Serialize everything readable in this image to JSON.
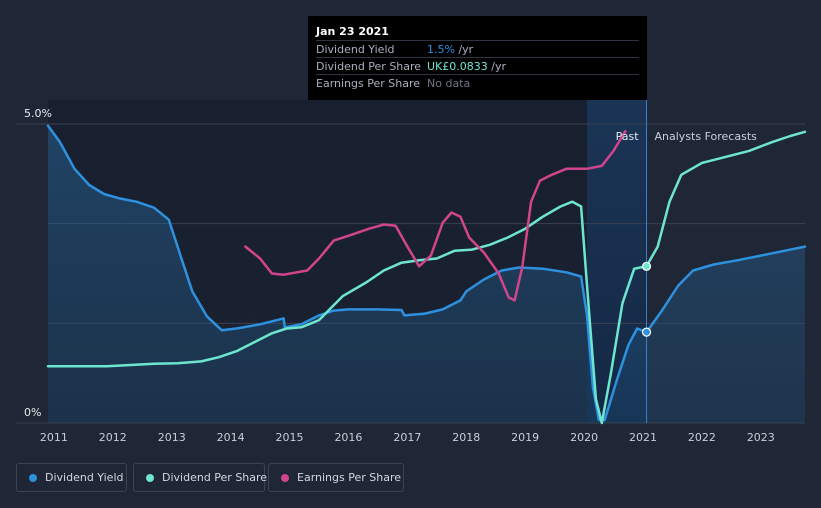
{
  "colors": {
    "dividend_yield": "#2d91e0",
    "dividend_per_share": "#6ee6cf",
    "earnings_per_share": "#d0458b",
    "background": "#1f2635"
  },
  "tooltip": {
    "date": "Jan 23 2021",
    "rows": [
      {
        "label": "Dividend Yield",
        "value": "1.5%",
        "unit": " /yr",
        "color": "#2d91e0"
      },
      {
        "label": "Dividend Per Share",
        "value": "UK£0.0833",
        "unit": " /yr",
        "color": "#6ee6cf"
      },
      {
        "label": "Earnings Per Share",
        "value": "No data",
        "unit": "",
        "color": "#6f7584"
      }
    ]
  },
  "legend": [
    {
      "label": "Dividend Yield",
      "color": "#2d91e0"
    },
    {
      "label": "Dividend Per Share",
      "color": "#6ee6cf"
    },
    {
      "label": "Earnings Per Share",
      "color": "#d0458b"
    }
  ],
  "chart_data": {
    "type": "line",
    "y_axis_labels": [
      "5.0%",
      "0%"
    ],
    "ylim": [
      0,
      5
    ],
    "xlim": [
      2010.9,
      2023.75
    ],
    "x_tick_labels": [
      "2011",
      "2012",
      "2013",
      "2014",
      "2015",
      "2016",
      "2017",
      "2018",
      "2019",
      "2020",
      "2021",
      "2022",
      "2023"
    ],
    "x_ticks": [
      2011,
      2012,
      2013,
      2014,
      2015,
      2016,
      2017,
      2018,
      2019,
      2020,
      2021,
      2022,
      2023
    ],
    "past_label": "Past",
    "forecast_label": "Analysts Forecasts",
    "past_boundary_x": 2021.06,
    "highlight_start_x": 2020.05,
    "series": [
      {
        "name": "Dividend Yield",
        "unit": "%",
        "points": [
          [
            2010.9,
            4.97
          ],
          [
            2011.1,
            4.7
          ],
          [
            2011.35,
            4.25
          ],
          [
            2011.6,
            3.98
          ],
          [
            2011.85,
            3.83
          ],
          [
            2012.1,
            3.76
          ],
          [
            2012.4,
            3.7
          ],
          [
            2012.7,
            3.6
          ],
          [
            2012.95,
            3.4
          ],
          [
            2013.15,
            2.8
          ],
          [
            2013.35,
            2.2
          ],
          [
            2013.6,
            1.78
          ],
          [
            2013.85,
            1.55
          ],
          [
            2014.1,
            1.58
          ],
          [
            2014.5,
            1.65
          ],
          [
            2014.9,
            1.75
          ],
          [
            2014.92,
            1.6
          ],
          [
            2015.2,
            1.65
          ],
          [
            2015.5,
            1.8
          ],
          [
            2015.75,
            1.88
          ],
          [
            2016.0,
            1.9
          ],
          [
            2016.5,
            1.9
          ],
          [
            2016.9,
            1.89
          ],
          [
            2016.95,
            1.8
          ],
          [
            2017.3,
            1.83
          ],
          [
            2017.6,
            1.9
          ],
          [
            2017.9,
            2.05
          ],
          [
            2018.0,
            2.2
          ],
          [
            2018.3,
            2.4
          ],
          [
            2018.6,
            2.55
          ],
          [
            2018.9,
            2.6
          ],
          [
            2019.3,
            2.58
          ],
          [
            2019.7,
            2.52
          ],
          [
            2019.95,
            2.45
          ],
          [
            2020.05,
            1.8
          ],
          [
            2020.15,
            0.6
          ],
          [
            2020.25,
            0.05
          ],
          [
            2020.35,
            0.05
          ],
          [
            2020.55,
            0.7
          ],
          [
            2020.75,
            1.3
          ],
          [
            2020.9,
            1.58
          ],
          [
            2021.06,
            1.52
          ],
          [
            2021.3,
            1.85
          ],
          [
            2021.6,
            2.3
          ],
          [
            2021.85,
            2.55
          ],
          [
            2022.2,
            2.65
          ],
          [
            2022.6,
            2.72
          ],
          [
            2023.0,
            2.8
          ],
          [
            2023.4,
            2.88
          ],
          [
            2023.75,
            2.95
          ]
        ]
      },
      {
        "name": "Dividend Per Share",
        "unit": "UK£",
        "points": [
          [
            2010.9,
            0.95
          ],
          [
            2011.5,
            0.95
          ],
          [
            2011.9,
            0.95
          ],
          [
            2012.3,
            0.97
          ],
          [
            2012.7,
            0.99
          ],
          [
            2013.1,
            1.0
          ],
          [
            2013.5,
            1.03
          ],
          [
            2013.8,
            1.1
          ],
          [
            2014.1,
            1.2
          ],
          [
            2014.4,
            1.35
          ],
          [
            2014.7,
            1.5
          ],
          [
            2014.95,
            1.58
          ],
          [
            2015.2,
            1.6
          ],
          [
            2015.5,
            1.72
          ],
          [
            2015.9,
            2.12
          ],
          [
            2016.3,
            2.35
          ],
          [
            2016.6,
            2.55
          ],
          [
            2016.9,
            2.68
          ],
          [
            2017.2,
            2.72
          ],
          [
            2017.5,
            2.75
          ],
          [
            2017.8,
            2.88
          ],
          [
            2018.1,
            2.9
          ],
          [
            2018.4,
            2.98
          ],
          [
            2018.7,
            3.1
          ],
          [
            2019.0,
            3.25
          ],
          [
            2019.3,
            3.45
          ],
          [
            2019.6,
            3.62
          ],
          [
            2019.8,
            3.7
          ],
          [
            2019.95,
            3.62
          ],
          [
            2020.05,
            2.3
          ],
          [
            2020.2,
            0.4
          ],
          [
            2020.3,
            0.0
          ],
          [
            2020.45,
            0.8
          ],
          [
            2020.65,
            2.0
          ],
          [
            2020.85,
            2.58
          ],
          [
            2021.06,
            2.62
          ],
          [
            2021.25,
            2.95
          ],
          [
            2021.45,
            3.7
          ],
          [
            2021.65,
            4.15
          ],
          [
            2022.0,
            4.35
          ],
          [
            2022.4,
            4.45
          ],
          [
            2022.8,
            4.55
          ],
          [
            2023.2,
            4.7
          ],
          [
            2023.5,
            4.8
          ],
          [
            2023.75,
            4.87
          ]
        ]
      },
      {
        "name": "Earnings Per Share",
        "unit": "UK£",
        "points": [
          [
            2014.25,
            2.95
          ],
          [
            2014.5,
            2.75
          ],
          [
            2014.7,
            2.5
          ],
          [
            2014.9,
            2.48
          ],
          [
            2015.3,
            2.55
          ],
          [
            2015.5,
            2.75
          ],
          [
            2015.75,
            3.05
          ],
          [
            2016.0,
            3.13
          ],
          [
            2016.35,
            3.25
          ],
          [
            2016.6,
            3.32
          ],
          [
            2016.8,
            3.3
          ],
          [
            2017.0,
            2.95
          ],
          [
            2017.2,
            2.62
          ],
          [
            2017.4,
            2.8
          ],
          [
            2017.6,
            3.35
          ],
          [
            2017.75,
            3.52
          ],
          [
            2017.9,
            3.45
          ],
          [
            2018.05,
            3.1
          ],
          [
            2018.3,
            2.85
          ],
          [
            2018.55,
            2.5
          ],
          [
            2018.72,
            2.1
          ],
          [
            2018.82,
            2.05
          ],
          [
            2018.95,
            2.6
          ],
          [
            2019.1,
            3.7
          ],
          [
            2019.25,
            4.05
          ],
          [
            2019.45,
            4.15
          ],
          [
            2019.7,
            4.25
          ],
          [
            2020.05,
            4.25
          ],
          [
            2020.3,
            4.3
          ],
          [
            2020.5,
            4.55
          ],
          [
            2020.7,
            4.88
          ]
        ]
      }
    ],
    "markers": [
      {
        "series": "Dividend Per Share",
        "x": 2021.06,
        "y": 2.62
      },
      {
        "series": "Dividend Yield",
        "x": 2021.06,
        "y": 1.52
      }
    ]
  }
}
